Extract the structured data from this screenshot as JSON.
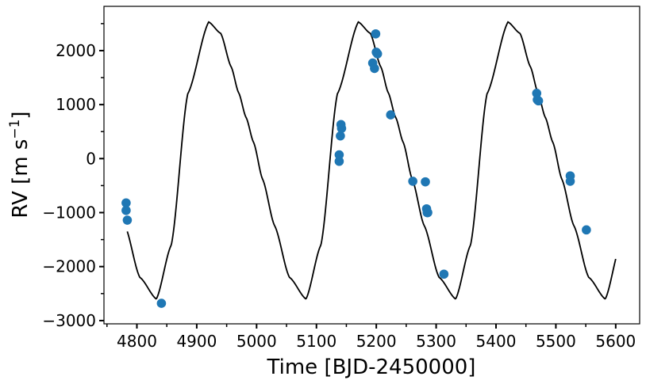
{
  "chart_data": {
    "type": "scatter",
    "title": "",
    "xlabel": "Time [BJD-2450000]",
    "ylabel": "RV [m s",
    "ylabel_superscript": "−1",
    "ylabel_close": "]",
    "xlim": [
      4745,
      5640
    ],
    "ylim": [
      -3060,
      2820
    ],
    "x_ticks": [
      4800,
      4900,
      5000,
      5100,
      5200,
      5300,
      5400,
      5500,
      5600
    ],
    "x_tick_labels": [
      "4800",
      "4900",
      "5000",
      "5100",
      "5200",
      "5300",
      "5400",
      "5500",
      "5600"
    ],
    "y_ticks": [
      -3000,
      -2000,
      -1000,
      0,
      1000,
      2000
    ],
    "y_tick_labels": [
      "−3000",
      "−2000",
      "−1000",
      "0",
      "1000",
      "2000"
    ],
    "grid": false,
    "colors": {
      "points": "#1f77b4",
      "model": "#000000"
    },
    "series": [
      {
        "kind": "points",
        "x": [
          4782,
          4782,
          4784,
          4841,
          5138,
          5138,
          5140,
          5141,
          5142,
          5194,
          5197,
          5199,
          5200,
          5202,
          5224,
          5261,
          5282,
          5284,
          5285,
          5286,
          5313,
          5468,
          5469,
          5471,
          5524,
          5524,
          5551
        ],
        "y": [
          -820,
          -960,
          -1140,
          -2680,
          -50,
          70,
          420,
          630,
          560,
          1770,
          1670,
          2310,
          1970,
          1940,
          810,
          -420,
          -430,
          -930,
          -1000,
          -1000,
          -2140,
          1210,
          1090,
          1070,
          -320,
          -420,
          -1320
        ]
      },
      {
        "kind": "model-curve",
        "period": 250,
        "x_start": 4784,
        "x_end": 5600,
        "knots_phase": [
          0,
          0.08,
          0.15,
          0.2,
          0.25,
          0.3,
          0.36,
          0.44,
          0.54,
          0.65,
          0.75,
          0.86,
          1.0
        ],
        "knots_rv": [
          2530,
          2320,
          1700,
          1220,
          760,
          300,
          -380,
          -1240,
          -2200,
          -2600,
          -1600,
          1200,
          2530
        ]
      }
    ]
  }
}
